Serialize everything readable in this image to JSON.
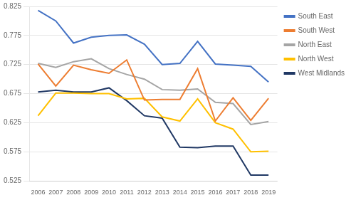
{
  "chart_data": {
    "type": "line",
    "x": [
      2006,
      2007,
      2008,
      2009,
      2010,
      2011,
      2012,
      2013,
      2014,
      2015,
      2016,
      2017,
      2018,
      2019
    ],
    "series": [
      {
        "name": "South East",
        "color": "#4472C4",
        "values": [
          0.818,
          0.8,
          0.762,
          0.772,
          0.775,
          0.776,
          0.76,
          0.725,
          0.727,
          0.765,
          0.726,
          0.724,
          0.722,
          0.695
        ]
      },
      {
        "name": "South West",
        "color": "#ED7D31",
        "values": [
          0.726,
          0.688,
          0.724,
          0.716,
          0.71,
          0.733,
          0.664,
          0.665,
          0.665,
          0.718,
          0.628,
          0.668,
          0.629,
          0.667
        ]
      },
      {
        "name": "North East",
        "color": "#A5A5A5",
        "values": [
          0.727,
          0.72,
          0.73,
          0.735,
          0.718,
          0.708,
          0.7,
          0.682,
          0.681,
          0.683,
          0.66,
          0.658,
          0.622,
          0.627
        ]
      },
      {
        "name": "North West",
        "color": "#FFC000",
        "values": [
          0.637,
          0.676,
          0.676,
          0.675,
          0.675,
          0.666,
          0.667,
          0.635,
          0.628,
          0.666,
          0.625,
          0.614,
          0.575,
          0.576
        ]
      },
      {
        "name": "West Midlands",
        "color": "#203864",
        "values": [
          0.678,
          0.681,
          0.678,
          0.678,
          0.685,
          0.663,
          0.637,
          0.633,
          0.583,
          0.582,
          0.585,
          0.585,
          0.535,
          0.535
        ]
      }
    ],
    "xlim": [
      2005.5,
      2019.5
    ],
    "xticks": [
      2006,
      2007,
      2008,
      2009,
      2010,
      2011,
      2012,
      2013,
      2014,
      2015,
      2016,
      2017,
      2018,
      2019
    ],
    "ylim": [
      0.525,
      0.825
    ],
    "yticks": [
      0.525,
      0.575,
      0.625,
      0.675,
      0.725,
      0.775,
      0.825
    ],
    "grid": "y",
    "legend": "right"
  }
}
